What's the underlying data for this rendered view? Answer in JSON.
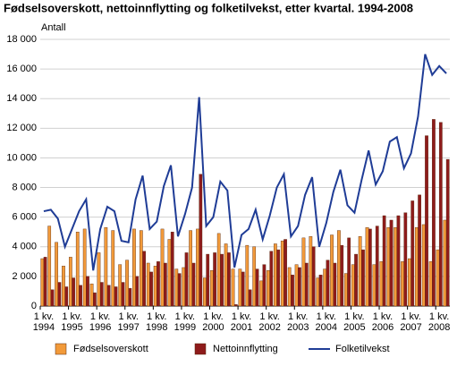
{
  "chart_data": {
    "type": "bar_line",
    "title": "Fødselsoverskott, nettoinnflytting og folketilvekst, etter kvartal. 1994-2008",
    "y_label": "Antall",
    "categories": [
      "1 kv.\n1994",
      null,
      null,
      null,
      "1 kv.\n1995",
      null,
      null,
      null,
      "1 kv.\n1996",
      null,
      null,
      null,
      "1 kv.\n1997",
      null,
      null,
      null,
      "1 kv.\n1998",
      null,
      null,
      null,
      "1 kv.\n1999",
      null,
      null,
      null,
      "1 kv.\n2000",
      null,
      null,
      null,
      "1 kv.\n2001",
      null,
      null,
      null,
      "1 kv.\n2002",
      null,
      null,
      null,
      "1 kv.\n2003",
      null,
      null,
      null,
      "1 kv.\n2004",
      null,
      null,
      null,
      "1 kv.\n2005",
      null,
      null,
      null,
      "1 kv.\n2006",
      null,
      null,
      null,
      "1 kv.\n2007",
      null,
      null,
      null,
      "1 kv.\n2008",
      null
    ],
    "series": [
      {
        "name": "Fødselsoverskott",
        "style": "bar",
        "color": "#f29a3a",
        "values": [
          3200,
          5400,
          4300,
          2700,
          3300,
          5000,
          5200,
          1500,
          3600,
          5300,
          5100,
          2800,
          3100,
          5200,
          5100,
          2900,
          2700,
          5200,
          4500,
          2500,
          2600,
          5100,
          5200,
          1900,
          2400,
          4900,
          4200,
          2500,
          2500,
          4100,
          4000,
          1700,
          2400,
          4200,
          4400,
          2600,
          2800,
          4600,
          4700,
          1900,
          2500,
          4800,
          5100,
          2200,
          2800,
          4700,
          5300,
          2800,
          3000,
          5300,
          5300,
          3000,
          3200,
          5300,
          5500,
          3000,
          3800,
          5800
        ]
      },
      {
        "name": "Nettoinnflytting",
        "style": "bar",
        "color": "#8e1b1b",
        "values": [
          3300,
          1100,
          1600,
          1300,
          1900,
          1400,
          2000,
          900,
          1600,
          1400,
          1300,
          1600,
          1200,
          2000,
          3700,
          2300,
          3000,
          2900,
          5000,
          2200,
          3600,
          2900,
          8900,
          3500,
          3600,
          3500,
          3600,
          100,
          2300,
          1100,
          2500,
          2800,
          3700,
          3800,
          4500,
          2100,
          2600,
          2900,
          4000,
          2100,
          3100,
          2900,
          4100,
          4600,
          3500,
          3800,
          5200,
          5400,
          6100,
          5800,
          6100,
          6300,
          7100,
          7500,
          11500,
          12600,
          12400,
          9900
        ]
      },
      {
        "name": "Folketilvekst",
        "style": "line",
        "color": "#1f3c96",
        "values": [
          6400,
          6500,
          5900,
          4000,
          5200,
          6400,
          7200,
          2400,
          5200,
          6700,
          6400,
          4400,
          4300,
          7200,
          8800,
          5200,
          5700,
          8100,
          9500,
          4700,
          6200,
          8000,
          14100,
          5400,
          6000,
          8400,
          7800,
          2600,
          4800,
          5200,
          6500,
          4500,
          6100,
          8000,
          8900,
          4700,
          5400,
          7500,
          8700,
          4000,
          5600,
          7700,
          9200,
          6800,
          6300,
          8500,
          10500,
          8200,
          9100,
          11100,
          11400,
          9300,
          10300,
          12800,
          17000,
          15600,
          16200,
          15700
        ]
      }
    ],
    "ylim": [
      0,
      18000
    ],
    "yticks": [
      0,
      {
        "value": 2000,
        "label": "2 000"
      },
      {
        "value": 4000,
        "label": "4 000"
      },
      {
        "value": 6000,
        "label": "6 000"
      },
      {
        "value": 8000,
        "label": "8 000"
      },
      {
        "value": 10000,
        "label": "10 000"
      },
      {
        "value": 12000,
        "label": "12 000"
      },
      {
        "value": 14000,
        "label": "14 000"
      },
      {
        "value": 16000,
        "label": "16 000"
      },
      {
        "value": 18000,
        "label": "18 000"
      }
    ],
    "grid": true,
    "legend": "bottom"
  }
}
